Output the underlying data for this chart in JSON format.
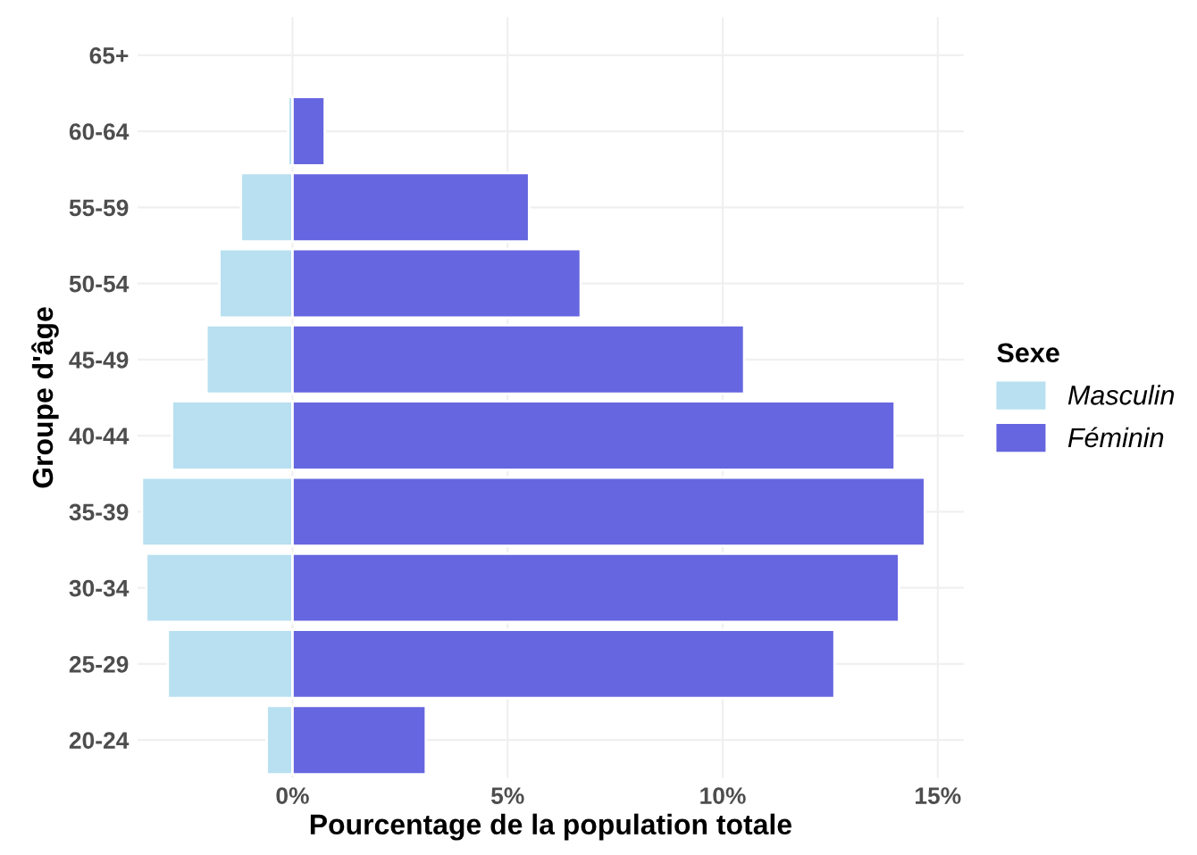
{
  "chart_data": {
    "type": "bar",
    "orientation": "horizontal",
    "xlabel": "Pourcentage de la population totale",
    "ylabel": "Groupe d'âge",
    "legend_title": "Sexe",
    "legend": "right",
    "stacked": true,
    "categories": [
      "65+",
      "60-64",
      "55-59",
      "50-54",
      "45-49",
      "40-44",
      "35-39",
      "30-34",
      "25-29",
      "20-24"
    ],
    "series": [
      {
        "name": "Masculin",
        "color": "#b8e0f0",
        "values": [
          0,
          -0.1,
          -1.2,
          -1.7,
          -2.0,
          -2.8,
          -3.5,
          -3.4,
          -2.9,
          -0.6
        ]
      },
      {
        "name": "Féminin",
        "color": "#6666e0",
        "values": [
          0,
          0.75,
          5.5,
          6.7,
          10.5,
          14.0,
          14.7,
          14.1,
          12.6,
          3.1
        ]
      }
    ],
    "xlim": [
      -3.6,
      15.6
    ],
    "xticks": [
      {
        "value": 0,
        "label": "0%"
      },
      {
        "value": 5,
        "label": "5%"
      },
      {
        "value": 10,
        "label": "10%"
      },
      {
        "value": 15,
        "label": "15%"
      }
    ],
    "grid": true
  }
}
